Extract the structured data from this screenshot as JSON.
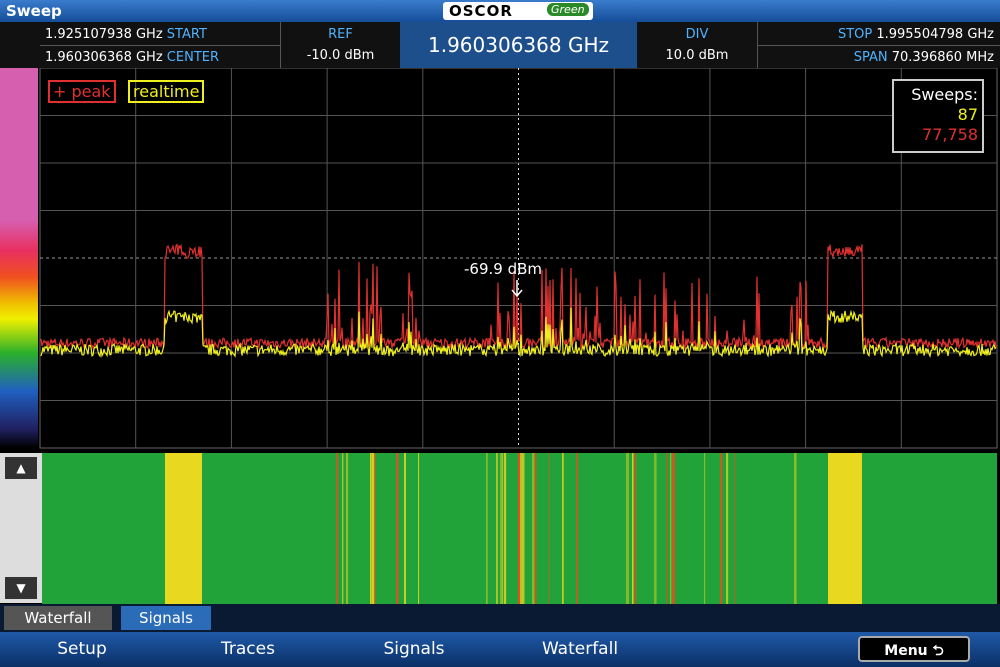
{
  "window": {
    "title": "Sweep",
    "logo": {
      "brand": "OSCOR",
      "edition": "Green"
    }
  },
  "header": {
    "start": {
      "value": "1.925107938 GHz",
      "label": "START"
    },
    "center": {
      "value": "1.960306368 GHz",
      "label": "CENTER"
    },
    "ref": {
      "label": "REF",
      "value": "-10.0 dBm"
    },
    "frequency": "1.960306368 GHz",
    "div": {
      "label": "DIV",
      "value": "10.0 dBm"
    },
    "stop": {
      "label": "STOP",
      "value": "1.995504798 GHz"
    },
    "span": {
      "label": "SPAN",
      "value": "70.396860 MHz"
    }
  },
  "legend": {
    "peak": "+ peak",
    "realtime": "realtime"
  },
  "sweeps": {
    "label": "Sweeps:",
    "realtime": "87",
    "peak": "77,758"
  },
  "marker": "-69.9 dBm",
  "tabs": [
    "Waterfall",
    "Signals"
  ],
  "menu": {
    "items": [
      "Setup",
      "Traces",
      "Signals",
      "Waterfall"
    ],
    "button": "Menu"
  }
}
